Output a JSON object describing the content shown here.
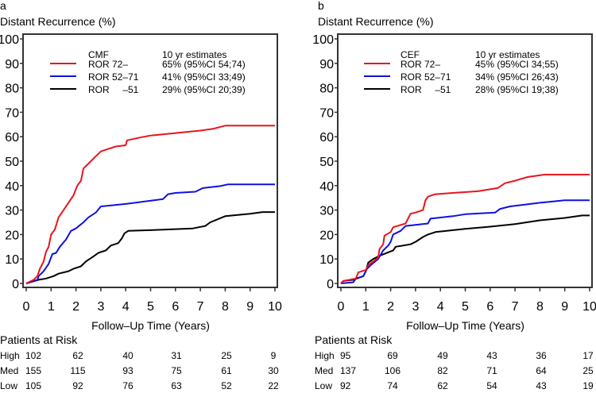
{
  "chart_data": [
    {
      "type": "line",
      "panel_label": "a",
      "title": "Distant Recurrence (%)",
      "xlabel": "Follow–Up Time (Years)",
      "ylabel": "Distant Recurrence (%)",
      "xlim": [
        0,
        10
      ],
      "ylim": [
        0,
        100
      ],
      "xticks": [
        0,
        1,
        2,
        3,
        4,
        5,
        6,
        7,
        8,
        9,
        10
      ],
      "yticks": [
        0,
        10,
        20,
        30,
        40,
        50,
        60,
        70,
        80,
        90,
        100
      ],
      "legend": {
        "title": "CMF",
        "est_title": "10 yr estimates",
        "placement": "top-left"
      },
      "series": [
        {
          "name": "ROR 72–",
          "estimate": "65% (95%CI 54;74)",
          "color": "#e8141c",
          "points": [
            [
              0,
              0
            ],
            [
              0.3,
              1.5
            ],
            [
              0.45,
              3
            ],
            [
              0.55,
              6
            ],
            [
              0.7,
              9
            ],
            [
              0.8,
              13
            ],
            [
              0.9,
              15
            ],
            [
              1,
              20
            ],
            [
              1.15,
              22
            ],
            [
              1.3,
              27
            ],
            [
              1.5,
              30
            ],
            [
              1.7,
              33
            ],
            [
              1.9,
              36
            ],
            [
              2.05,
              40
            ],
            [
              2.2,
              42
            ],
            [
              2.3,
              47
            ],
            [
              2.5,
              49
            ],
            [
              2.8,
              52
            ],
            [
              3,
              54
            ],
            [
              3.3,
              55
            ],
            [
              3.6,
              56
            ],
            [
              4,
              56.5
            ],
            [
              4.05,
              58.5
            ],
            [
              4.5,
              59.5
            ],
            [
              5,
              60.5
            ],
            [
              6,
              61.5
            ],
            [
              7,
              62.5
            ],
            [
              7.5,
              63.2
            ],
            [
              8,
              64.5
            ],
            [
              10,
              64.5
            ]
          ]
        },
        {
          "name": "ROR 52–71",
          "estimate": "41% (95%CI 33;49)",
          "color": "#1010e0",
          "points": [
            [
              0,
              0
            ],
            [
              0.45,
              1.5
            ],
            [
              0.5,
              3
            ],
            [
              0.7,
              5
            ],
            [
              0.9,
              8
            ],
            [
              1.05,
              12
            ],
            [
              1.2,
              12.5
            ],
            [
              1.35,
              15
            ],
            [
              1.6,
              18
            ],
            [
              1.8,
              21.5
            ],
            [
              2,
              22.5
            ],
            [
              2.3,
              25
            ],
            [
              2.5,
              27
            ],
            [
              2.8,
              29
            ],
            [
              3,
              31.5
            ],
            [
              4,
              32.5
            ],
            [
              5.5,
              34.5
            ],
            [
              5.7,
              36.5
            ],
            [
              6,
              37
            ],
            [
              6.8,
              37.5
            ],
            [
              7.1,
              39
            ],
            [
              7.8,
              39.8
            ],
            [
              8.1,
              40.5
            ],
            [
              10,
              40.5
            ]
          ]
        },
        {
          "name": "ROR     –51",
          "estimate": "29% (95%CI 20;39)",
          "color": "#000000",
          "points": [
            [
              0,
              0
            ],
            [
              0.5,
              1.5
            ],
            [
              0.8,
              2
            ],
            [
              1.1,
              3
            ],
            [
              1.3,
              4
            ],
            [
              1.7,
              5
            ],
            [
              1.9,
              6
            ],
            [
              2.2,
              7
            ],
            [
              2.4,
              9
            ],
            [
              2.7,
              11
            ],
            [
              2.9,
              12.5
            ],
            [
              3.2,
              13.5
            ],
            [
              3.4,
              15.5
            ],
            [
              3.7,
              16.5
            ],
            [
              3.85,
              18.5
            ],
            [
              3.95,
              20.5
            ],
            [
              4.1,
              21.5
            ],
            [
              5,
              21.8
            ],
            [
              6.7,
              22.5
            ],
            [
              7.2,
              23.5
            ],
            [
              7.4,
              25
            ],
            [
              8,
              27.5
            ],
            [
              9,
              28.5
            ],
            [
              9.5,
              29.2
            ],
            [
              10,
              29.2
            ]
          ]
        }
      ],
      "risk_table": {
        "title": "Patients at Risk",
        "times": [
          0,
          2,
          4,
          6,
          8,
          10
        ],
        "rows": [
          {
            "label": "High",
            "values": [
              102,
              62,
              40,
              31,
              25,
              9
            ]
          },
          {
            "label": "Med",
            "values": [
              155,
              115,
              93,
              75,
              61,
              30
            ]
          },
          {
            "label": "Low",
            "values": [
              105,
              92,
              76,
              63,
              52,
              22
            ]
          }
        ]
      }
    },
    {
      "type": "line",
      "panel_label": "b",
      "title": "Distant Recurrence (%)",
      "xlabel": "Follow–Up Time (Years)",
      "ylabel": "Distant Recurrence (%)",
      "xlim": [
        0,
        10
      ],
      "ylim": [
        0,
        100
      ],
      "xticks": [
        0,
        1,
        2,
        3,
        4,
        5,
        6,
        7,
        8,
        9,
        10
      ],
      "yticks": [
        0,
        10,
        20,
        30,
        40,
        50,
        60,
        70,
        80,
        90,
        100
      ],
      "legend": {
        "title": "CEF",
        "est_title": "10 yr estimates",
        "placement": "top-left"
      },
      "series": [
        {
          "name": "ROR 72–",
          "estimate": "45% (95%CI 34;55)",
          "color": "#e8141c",
          "points": [
            [
              0,
              0
            ],
            [
              0.1,
              1
            ],
            [
              0.6,
              2
            ],
            [
              0.7,
              4.5
            ],
            [
              1,
              5.5
            ],
            [
              1.1,
              7.5
            ],
            [
              1.3,
              9
            ],
            [
              1.5,
              10.5
            ],
            [
              1.55,
              14
            ],
            [
              1.7,
              16
            ],
            [
              1.75,
              19.5
            ],
            [
              2,
              21
            ],
            [
              2.1,
              23
            ],
            [
              2.6,
              24.5
            ],
            [
              2.8,
              28.5
            ],
            [
              3,
              29
            ],
            [
              3.3,
              30
            ],
            [
              3.4,
              34
            ],
            [
              3.5,
              35.5
            ],
            [
              3.8,
              36.5
            ],
            [
              4.5,
              37
            ],
            [
              5.5,
              37.7
            ],
            [
              6,
              38.5
            ],
            [
              6.3,
              39
            ],
            [
              6.6,
              41
            ],
            [
              7,
              42
            ],
            [
              7.5,
              43.5
            ],
            [
              8.2,
              44.5
            ],
            [
              10,
              44.5
            ]
          ]
        },
        {
          "name": "ROR 52–71",
          "estimate": "34% (95%CI 26;43)",
          "color": "#1010e0",
          "points": [
            [
              0,
              0
            ],
            [
              0.5,
              0.5
            ],
            [
              0.6,
              2
            ],
            [
              0.9,
              3
            ],
            [
              1.05,
              6
            ],
            [
              1.2,
              7.5
            ],
            [
              1.5,
              10
            ],
            [
              1.7,
              13.5
            ],
            [
              1.9,
              15.5
            ],
            [
              2,
              17
            ],
            [
              2.1,
              20
            ],
            [
              2.3,
              21
            ],
            [
              2.4,
              21.5
            ],
            [
              2.6,
              23.5
            ],
            [
              3.5,
              24.5
            ],
            [
              3.6,
              26.5
            ],
            [
              4.5,
              27.5
            ],
            [
              5,
              28.3
            ],
            [
              6.2,
              29
            ],
            [
              6.4,
              30.5
            ],
            [
              6.8,
              31.5
            ],
            [
              8,
              33
            ],
            [
              9,
              34
            ],
            [
              10,
              34
            ]
          ]
        },
        {
          "name": "ROR     –51",
          "estimate": "28% (95%CI 19;38)",
          "color": "#000000",
          "points": [
            [
              0,
              0
            ],
            [
              0.1,
              1
            ],
            [
              0.5,
              1.5
            ],
            [
              0.9,
              3
            ],
            [
              1,
              5
            ],
            [
              1.1,
              8.5
            ],
            [
              1.3,
              10
            ],
            [
              1.6,
              11.5
            ],
            [
              2.1,
              13.5
            ],
            [
              2.2,
              15
            ],
            [
              2.8,
              16
            ],
            [
              3,
              17
            ],
            [
              3.3,
              19
            ],
            [
              3.5,
              20
            ],
            [
              3.8,
              21
            ],
            [
              5,
              22.3
            ],
            [
              6,
              23.2
            ],
            [
              7,
              24.3
            ],
            [
              8,
              25.8
            ],
            [
              9,
              26.8
            ],
            [
              9.7,
              27.8
            ],
            [
              10,
              27.8
            ]
          ]
        }
      ],
      "risk_table": {
        "title": "Patients at Risk",
        "times": [
          0,
          2,
          4,
          6,
          8,
          10
        ],
        "rows": [
          {
            "label": "High",
            "values": [
              95,
              69,
              49,
              43,
              36,
              17
            ]
          },
          {
            "label": "Med",
            "values": [
              137,
              106,
              82,
              71,
              64,
              25
            ]
          },
          {
            "label": "Low",
            "values": [
              92,
              74,
              62,
              54,
              43,
              19
            ]
          }
        ]
      }
    }
  ]
}
